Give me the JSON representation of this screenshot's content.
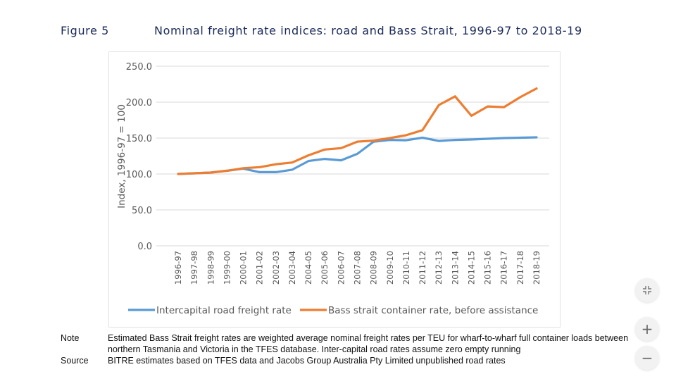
{
  "figure": {
    "label": "Figure 5",
    "title": "Nominal freight rate indices: road and Bass Strait, 1996-97 to 2018-19"
  },
  "chart_data": {
    "type": "line",
    "title": "Nominal freight rate indices: road and Bass Strait, 1996-97 to 2018-19",
    "xlabel": "",
    "ylabel": "Index, 1996-97 = 100",
    "ylim": [
      0,
      250
    ],
    "yticks": [
      "0.0",
      "50.0",
      "100.0",
      "150.0",
      "200.0",
      "250.0"
    ],
    "ytick_values": [
      0,
      50,
      100,
      150,
      200,
      250
    ],
    "grid": true,
    "legend_position": "bottom",
    "categories": [
      "1996-97",
      "1997-98",
      "1998-99",
      "1999-00",
      "2000-01",
      "2001-02",
      "2002-03",
      "2003-04",
      "2004-05",
      "2005-06",
      "2006-07",
      "2007-08",
      "2008-09",
      "2009-10",
      "2010-11",
      "2011-12",
      "2012-13",
      "2013-14",
      "2014-15",
      "2015-16",
      "2016-17",
      "2017-18",
      "2018-19"
    ],
    "series": [
      {
        "name": "Intercapital road freight rate",
        "color": "#5b9bd5",
        "values": [
          100,
          101,
          102,
          104.5,
          107.5,
          102.5,
          102.5,
          106,
          118,
          121,
          119,
          128,
          145,
          147.5,
          147,
          150.5,
          146,
          147.5,
          148,
          149,
          150,
          150.5,
          151
        ]
      },
      {
        "name": "Bass strait container rate, before assistance",
        "color": "#ed7d31",
        "values": [
          100,
          101,
          102,
          104.5,
          108,
          109.5,
          113.5,
          116,
          126,
          134,
          136,
          145,
          146.5,
          150,
          154,
          161,
          196,
          208,
          181,
          194,
          193,
          207,
          219
        ]
      }
    ]
  },
  "notes": [
    {
      "key": "Note",
      "text": "Estimated Bass Strait freight rates are weighted average nominal freight rates per TEU for wharf-to-wharf full container loads between northern Tasmania and Victoria in the TFES database. Inter-capital road rates assume zero empty running"
    },
    {
      "key": "Source",
      "text": "BITRE estimates based on TFES data and Jacobs Group Australia Pty Limited unpublished road rates"
    }
  ],
  "controls": {
    "fit_icon": "fit-to-screen-icon",
    "zoom_in_label": "+",
    "zoom_out_label": "−"
  }
}
